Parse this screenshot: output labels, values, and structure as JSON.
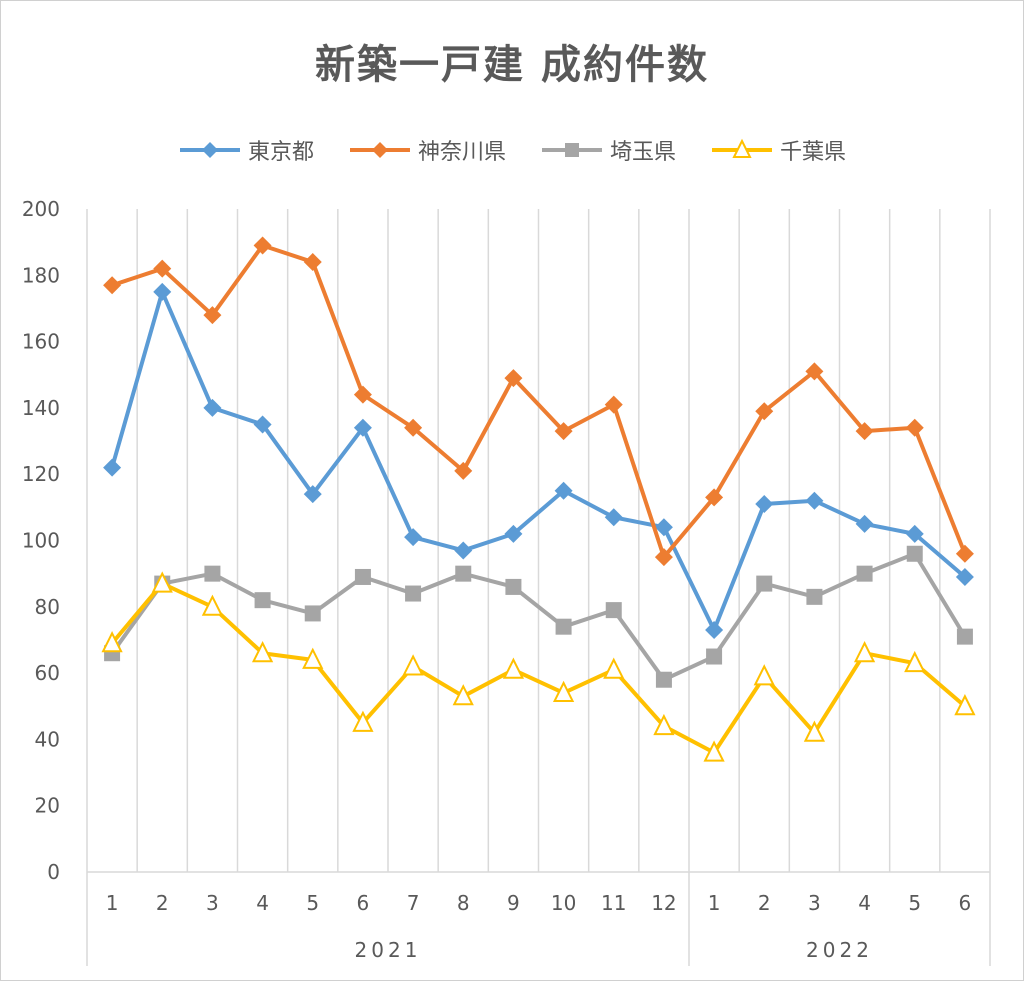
{
  "chart_data": {
    "type": "line",
    "title": "新築一戸建 成約件数",
    "xlabel": "",
    "ylabel": "",
    "ylim": [
      0,
      200
    ],
    "y_ticks": [
      "0",
      "20",
      "40",
      "60",
      "80",
      "100",
      "120",
      "140",
      "160",
      "180",
      "200"
    ],
    "categories": [
      "1",
      "2",
      "3",
      "4",
      "5",
      "6",
      "7",
      "8",
      "9",
      "10",
      "11",
      "12",
      "1",
      "2",
      "3",
      "4",
      "5",
      "6"
    ],
    "year_groups": [
      {
        "label": "2021",
        "count": 12
      },
      {
        "label": "2022",
        "count": 6
      }
    ],
    "grid": "vertical",
    "legend_position": "top",
    "series": [
      {
        "name": "東京都",
        "color": "#5B9BD5",
        "marker": "diamond",
        "values": [
          122,
          175,
          140,
          135,
          114,
          134,
          101,
          97,
          102,
          115,
          107,
          104,
          73,
          111,
          112,
          105,
          102,
          89
        ]
      },
      {
        "name": "神奈川県",
        "color": "#ED7D31",
        "marker": "diamond",
        "values": [
          177,
          182,
          168,
          189,
          184,
          144,
          134,
          121,
          149,
          133,
          141,
          95,
          113,
          139,
          151,
          133,
          134,
          96
        ]
      },
      {
        "name": "埼玉県",
        "color": "#A5A5A5",
        "marker": "square",
        "values": [
          66,
          87,
          90,
          82,
          78,
          89,
          84,
          90,
          86,
          74,
          79,
          58,
          65,
          87,
          83,
          90,
          96,
          71
        ]
      },
      {
        "name": "千葉県",
        "color": "#FFC000",
        "marker": "triangle",
        "values": [
          69,
          87,
          80,
          66,
          64,
          45,
          62,
          53,
          61,
          54,
          61,
          44,
          36,
          59,
          42,
          66,
          63,
          50
        ]
      }
    ]
  }
}
